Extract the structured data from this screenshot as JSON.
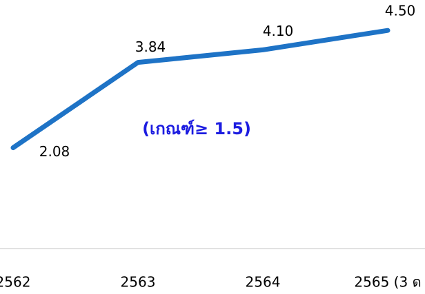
{
  "chart_data": {
    "type": "line",
    "categories": [
      "2562",
      "2563",
      "2564",
      "2565 (3 ด"
    ],
    "series": [
      {
        "name": null,
        "color": "#1e73c6",
        "values": [
          2.08,
          3.84,
          4.1,
          4.5
        ],
        "value_labels": [
          "2.08",
          "3.84",
          "4.10",
          "4.50"
        ]
      }
    ],
    "annotation": "(เกณฑ์≥ 1.5)",
    "annotation_color": "#1c1ce0",
    "ylim": [
      0,
      5
    ]
  }
}
